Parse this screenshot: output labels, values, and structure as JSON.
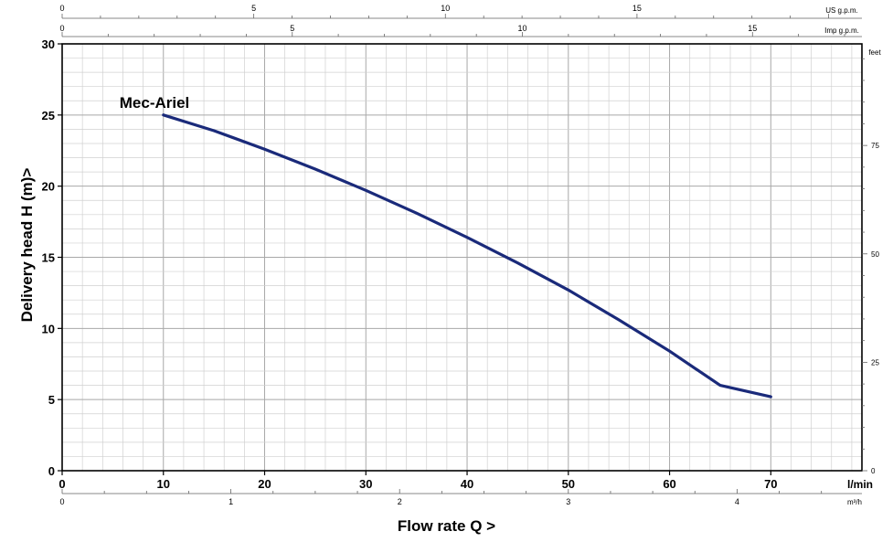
{
  "chart_data": {
    "type": "line",
    "xlabel": "Flow rate Q >",
    "ylabel": "Delivery head H (m)>",
    "xlim": [
      0,
      79
    ],
    "ylim": [
      0,
      30
    ],
    "x_ticks": [
      "0",
      "10",
      "20",
      "30",
      "40",
      "50",
      "60",
      "70"
    ],
    "x_unit": "l/min",
    "y_ticks": [
      "0",
      "5",
      "10",
      "15",
      "20",
      "25",
      "30"
    ],
    "grid": true,
    "series": [
      {
        "name": "Mec-Ariel",
        "color": "#1a2a7a",
        "x": [
          10,
          15,
          20,
          25,
          30,
          35,
          40,
          45,
          50,
          55,
          60,
          65,
          70
        ],
        "y": [
          25.0,
          23.9,
          22.6,
          21.2,
          19.7,
          18.1,
          16.4,
          14.6,
          12.7,
          10.6,
          8.4,
          6.0,
          5.2
        ]
      }
    ],
    "secondary_axes": {
      "us_gpm": {
        "label": "US g.p.m.",
        "ticks": [
          "0",
          "5",
          "10",
          "15"
        ],
        "values": [
          0,
          5,
          10,
          15
        ]
      },
      "imp_gpm": {
        "label": "Imp g.p.m.",
        "ticks": [
          "0",
          "5",
          "10",
          "15"
        ],
        "values": [
          0,
          5,
          10,
          15
        ]
      },
      "m3h": {
        "label": "m³/h",
        "ticks": [
          "0",
          "1",
          "2",
          "3",
          "4"
        ],
        "values": [
          0,
          1,
          2,
          3,
          4
        ]
      },
      "feet": {
        "label": "feet",
        "ticks": [
          "0",
          "25",
          "50",
          "75"
        ],
        "values": [
          0,
          25,
          50,
          75
        ]
      }
    }
  }
}
